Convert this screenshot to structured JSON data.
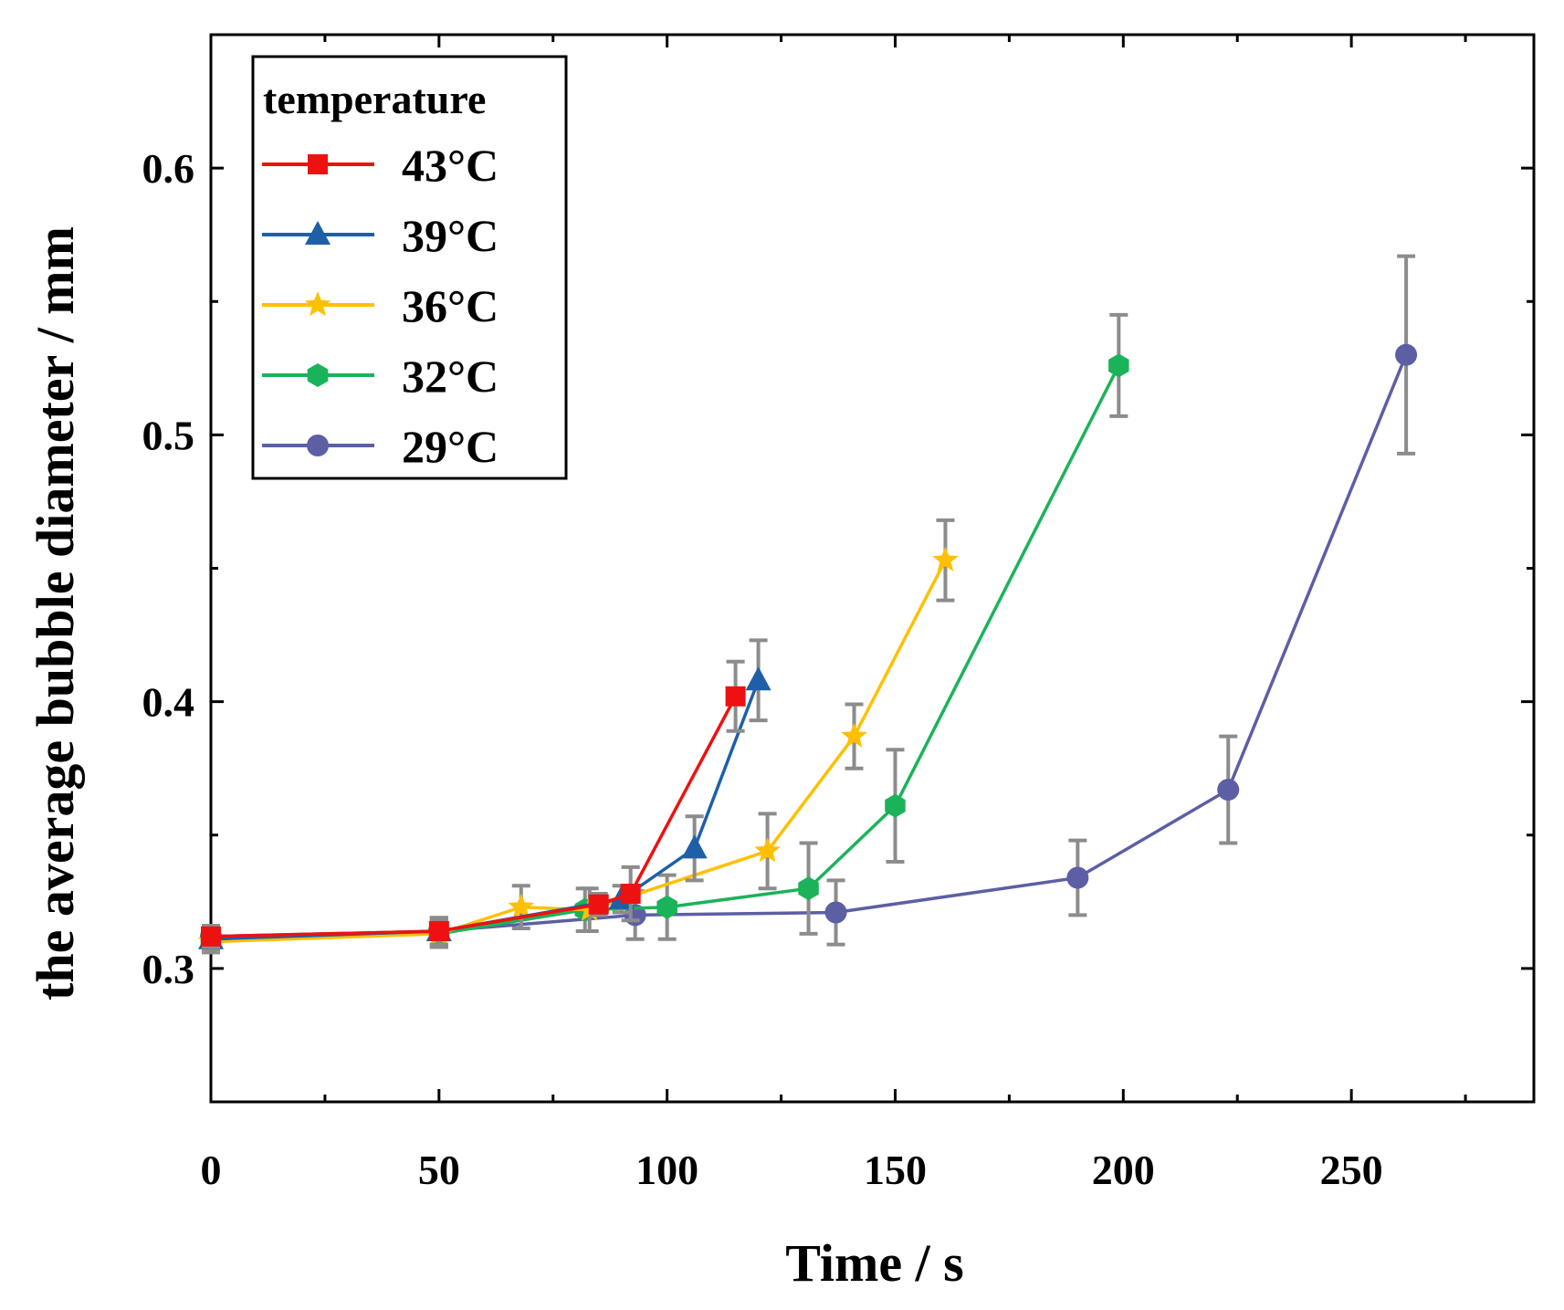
{
  "chart_data": {
    "type": "line",
    "xlabel": "Time / s",
    "ylabel": "the average bubble diameter / mm",
    "xlim": [
      0,
      290
    ],
    "ylim": [
      0.25,
      0.65
    ],
    "x_ticks": [
      0,
      50,
      100,
      150,
      200,
      250
    ],
    "x_tick_labels": [
      "0",
      "50",
      "100",
      "150",
      "200",
      "250"
    ],
    "y_ticks": [
      0.3,
      0.4,
      0.5,
      0.6
    ],
    "y_tick_labels": [
      "0.3",
      "0.4",
      "0.5",
      "0.6"
    ],
    "legend": {
      "title": "temperature",
      "position": "top-left"
    },
    "grid": false,
    "series": [
      {
        "name": "43°C",
        "color": "#ee1111",
        "marker": "square",
        "x": [
          0,
          50,
          85,
          92,
          115
        ],
        "y": [
          0.312,
          0.314,
          0.324,
          0.328,
          0.402
        ],
        "err": [
          0.004,
          0.005,
          0.004,
          0.01,
          0.013
        ]
      },
      {
        "name": "39°C",
        "color": "#1e5fa8",
        "marker": "triangle",
        "x": [
          0,
          50,
          90,
          106,
          120
        ],
        "y": [
          0.311,
          0.314,
          0.326,
          0.345,
          0.408
        ],
        "err": [
          0.004,
          0.005,
          0.005,
          0.012,
          0.015
        ]
      },
      {
        "name": "36°C",
        "color": "#ffc000",
        "marker": "star",
        "x": [
          0,
          50,
          68,
          83,
          122,
          141,
          161
        ],
        "y": [
          0.31,
          0.313,
          0.323,
          0.322,
          0.344,
          0.387,
          0.453
        ],
        "err": [
          0.004,
          0.005,
          0.008,
          0.008,
          0.014,
          0.012,
          0.015
        ]
      },
      {
        "name": "32°C",
        "color": "#1bb35a",
        "marker": "hexagon",
        "x": [
          0,
          50,
          82,
          100,
          131,
          150,
          199
        ],
        "y": [
          0.311,
          0.313,
          0.322,
          0.323,
          0.33,
          0.361,
          0.526
        ],
        "err": [
          0.004,
          0.005,
          0.008,
          0.012,
          0.017,
          0.021,
          0.019
        ]
      },
      {
        "name": "29°C",
        "color": "#5c5fa4",
        "marker": "circle",
        "x": [
          0,
          50,
          93,
          137,
          190,
          223,
          262
        ],
        "y": [
          0.312,
          0.314,
          0.32,
          0.321,
          0.334,
          0.367,
          0.53
        ],
        "err": [
          0.004,
          0.005,
          0.009,
          0.012,
          0.014,
          0.02,
          0.037
        ]
      }
    ]
  }
}
